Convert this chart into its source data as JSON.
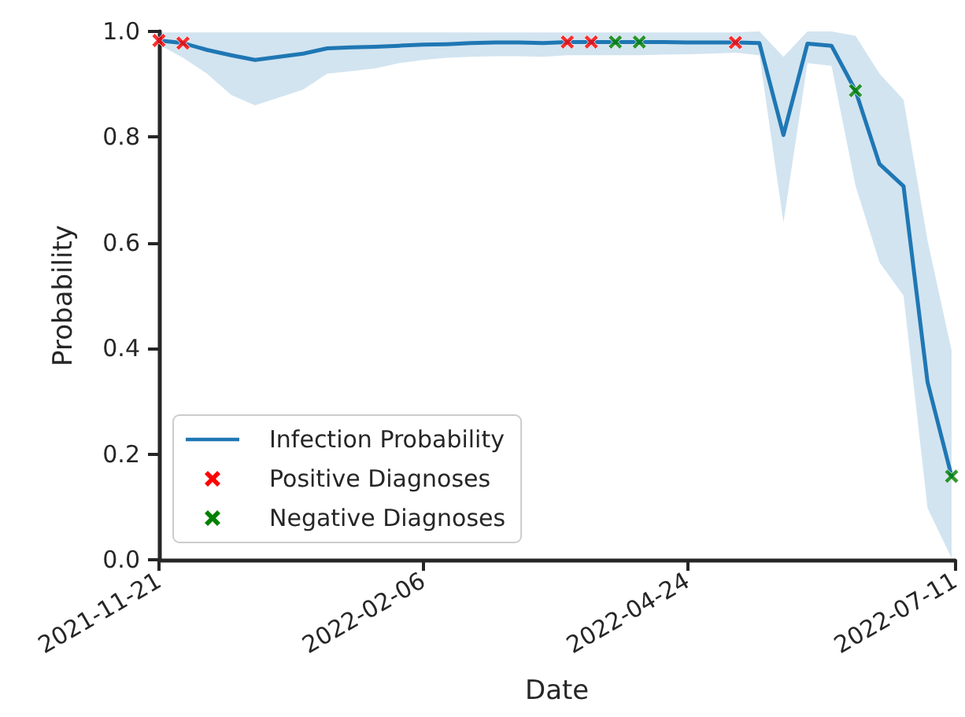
{
  "chart_data": {
    "type": "line",
    "xlabel": "Date",
    "ylabel": "Probability",
    "x": [
      "2021-11-21",
      "2021-11-28",
      "2021-12-05",
      "2021-12-12",
      "2021-12-19",
      "2021-12-26",
      "2022-01-02",
      "2022-01-09",
      "2022-01-16",
      "2022-01-23",
      "2022-01-30",
      "2022-02-06",
      "2022-02-13",
      "2022-02-20",
      "2022-02-27",
      "2022-03-06",
      "2022-03-13",
      "2022-03-20",
      "2022-03-27",
      "2022-04-03",
      "2022-04-10",
      "2022-04-17",
      "2022-04-24",
      "2022-05-01",
      "2022-05-08",
      "2022-05-15",
      "2022-05-22",
      "2022-05-29",
      "2022-06-05",
      "2022-06-12",
      "2022-06-19",
      "2022-06-26",
      "2022-07-03",
      "2022-07-10"
    ],
    "series": [
      {
        "name": "Infection Probability",
        "color": "#1f77b4",
        "marker": "none",
        "line_style": "solid",
        "values": [
          0.983,
          0.978,
          0.965,
          0.955,
          0.946,
          0.952,
          0.958,
          0.968,
          0.97,
          0.971,
          0.973,
          0.975,
          0.976,
          0.978,
          0.979,
          0.979,
          0.978,
          0.98,
          0.98,
          0.98,
          0.98,
          0.98,
          0.979,
          0.979,
          0.979,
          0.978,
          0.804,
          0.977,
          0.973,
          0.888,
          0.749,
          0.707,
          0.336,
          0.158
        ],
        "lower": [
          0.975,
          0.95,
          0.92,
          0.88,
          0.86,
          0.875,
          0.89,
          0.92,
          0.925,
          0.93,
          0.94,
          0.946,
          0.95,
          0.952,
          0.953,
          0.953,
          0.952,
          0.955,
          0.955,
          0.955,
          0.955,
          0.956,
          0.957,
          0.958,
          0.96,
          0.955,
          0.638,
          0.94,
          0.935,
          0.708,
          0.563,
          0.5,
          0.098,
          0.003
        ],
        "upper": [
          0.998,
          0.998,
          0.998,
          0.998,
          0.998,
          0.998,
          0.998,
          0.998,
          0.998,
          0.998,
          0.998,
          0.998,
          0.998,
          0.998,
          0.998,
          0.998,
          0.998,
          0.998,
          0.998,
          0.998,
          0.998,
          0.998,
          0.998,
          0.998,
          0.998,
          1.0,
          0.952,
          1.0,
          1.0,
          0.992,
          0.92,
          0.871,
          0.604,
          0.396
        ]
      },
      {
        "name": "Positive Diagnoses",
        "type": "scatter",
        "color": "#ff0000",
        "marker": "cross",
        "x": [
          "2021-11-21",
          "2021-11-28",
          "2022-03-20",
          "2022-03-27",
          "2022-05-08"
        ],
        "values": [
          0.983,
          0.978,
          0.98,
          0.98,
          0.979
        ]
      },
      {
        "name": "Negative Diagnoses",
        "type": "scatter",
        "color": "#008000",
        "marker": "cross",
        "x": [
          "2022-04-03",
          "2022-04-10",
          "2022-06-12",
          "2022-07-10"
        ],
        "values": [
          0.98,
          0.98,
          0.888,
          0.158
        ]
      }
    ],
    "xlim": [
      "2021-11-21",
      "2022-07-11"
    ],
    "xticks": [
      "2021-11-21",
      "2022-02-06",
      "2022-04-24",
      "2022-07-11"
    ],
    "ylim": [
      0,
      1
    ],
    "yticks": [
      {
        "value": 0,
        "label": "0.0"
      },
      {
        "value": 0.2,
        "label": "0.2"
      },
      {
        "value": 0.4,
        "label": "0.4"
      },
      {
        "value": 0.6,
        "label": "0.6"
      },
      {
        "value": 0.8,
        "label": "0.8"
      },
      {
        "value": 1,
        "label": "1.0"
      }
    ],
    "grid": false,
    "legend": "bottom left"
  }
}
